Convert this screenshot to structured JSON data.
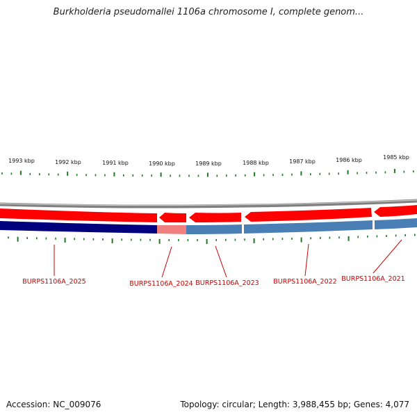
{
  "title": "Burkholderia pseudomallei 1106a chromosome I, complete genom...",
  "accession": "Accession: NC_009076",
  "topology": "Topology: circular; Length: 3,988,455 bp; Genes: 4,077",
  "ruler": {
    "labels": [
      "1993 kbp",
      "1992 kbp",
      "1991 kbp",
      "1990 kbp",
      "1989 kbp",
      "1988 kbp",
      "1987 kbp",
      "1986 kbp",
      "1985 kbp"
    ]
  },
  "colors": {
    "forward_gene": "#ff0000",
    "reverse_gene": "#4a7fb5",
    "reverse_gene_selected": "#00007f",
    "reverse_gene_highlight": "#f08080",
    "tick": "#1f7a1f",
    "label": "#cc0000",
    "backbone": "#808080"
  },
  "genes": [
    {
      "label": "BURPS1106A_2025"
    },
    {
      "label": "BURPS1106A_2024"
    },
    {
      "label": "BURPS1106A_2023"
    },
    {
      "label": "BURPS1106A_2022"
    },
    {
      "label": "BURPS1106A_2021"
    }
  ]
}
